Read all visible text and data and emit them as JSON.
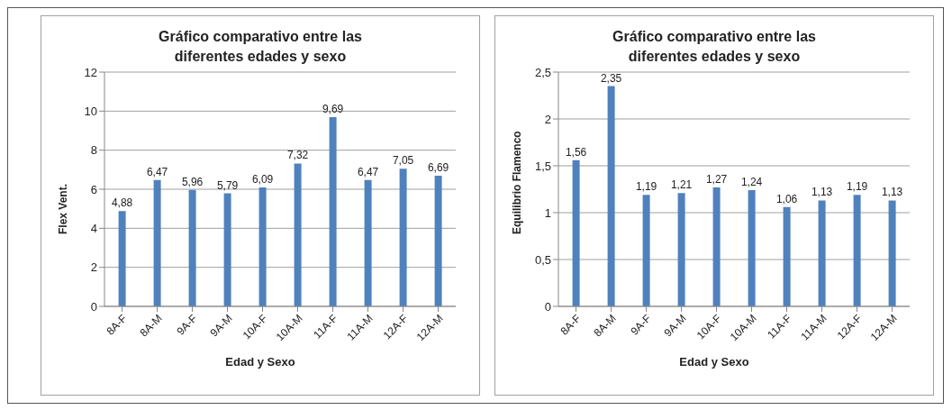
{
  "chart_data": [
    {
      "type": "bar",
      "title": "Gráfico comparativo entre las diferentes edades y sexo",
      "xlabel": "Edad y Sexo",
      "ylabel": "Flex Vent.",
      "categories": [
        "8A-F",
        "8A-M",
        "9A-F",
        "9A-M",
        "10A-F",
        "10A-M",
        "11A-F",
        "11A-M",
        "12A-F",
        "12A-M"
      ],
      "values": [
        4.88,
        6.47,
        5.96,
        5.79,
        6.09,
        7.32,
        9.69,
        6.47,
        7.05,
        6.69
      ],
      "value_labels": [
        "4,88",
        "6,47",
        "5,96",
        "5,79",
        "6,09",
        "7,32",
        "9,69",
        "6,47",
        "7,05",
        "6,69"
      ],
      "color": "#4f81bd",
      "ylim": [
        0,
        12
      ],
      "yticks": [
        0,
        2,
        4,
        6,
        8,
        10,
        12
      ],
      "grid": "y",
      "legend": false
    },
    {
      "type": "bar",
      "title": "Gráfico comparativo entre las diferentes edades y sexo",
      "xlabel": "Edad y Sexo",
      "ylabel": "Equilibrio  Flamenco",
      "categories": [
        "8A-F",
        "8A-M",
        "9A-F",
        "9A-M",
        "10A-F",
        "10A-M",
        "11A-F",
        "11A-M",
        "12A-F",
        "12A-M"
      ],
      "values": [
        1.56,
        2.35,
        1.19,
        1.21,
        1.27,
        1.24,
        1.06,
        1.13,
        1.19,
        1.13
      ],
      "value_labels": [
        "1,56",
        "2,35",
        "1,19",
        "1,21",
        "1,27",
        "1,24",
        "1,06",
        "1,13",
        "1,19",
        "1,13"
      ],
      "color": "#4f81bd",
      "ylim": [
        0,
        2.5
      ],
      "yticks": [
        0,
        {
          "value": 0.5,
          "label": "0,5"
        },
        1,
        {
          "value": 1.5,
          "label": "1,5"
        },
        2,
        {
          "value": 2.5,
          "label": "2,5"
        }
      ],
      "grid": "y",
      "legend": false
    }
  ]
}
